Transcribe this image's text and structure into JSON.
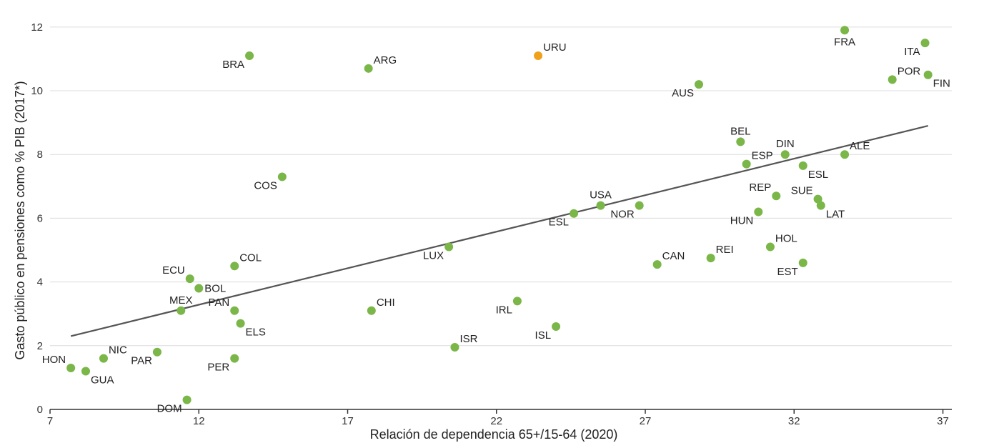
{
  "chart_data": {
    "type": "scatter",
    "xlabel": "Relación de dependencia 65+/15-64 (2020)",
    "ylabel": "Gasto público en pensiones como % PIB (2017*)",
    "xlim": [
      7,
      37.3
    ],
    "ylim": [
      0,
      12.4
    ],
    "x_ticks": [
      7,
      12,
      17,
      22,
      27,
      32,
      37
    ],
    "y_ticks": [
      0,
      2,
      4,
      6,
      8,
      10,
      12
    ],
    "grid": true,
    "colors": {
      "default": "#7ab648",
      "highlight": "#f0a11c"
    },
    "points": [
      {
        "label": "HON",
        "x": 7.7,
        "y": 1.3,
        "pos": "tl"
      },
      {
        "label": "GUA",
        "x": 8.2,
        "y": 1.2,
        "pos": "br"
      },
      {
        "label": "NIC",
        "x": 8.8,
        "y": 1.6,
        "pos": "tr"
      },
      {
        "label": "PAR",
        "x": 10.6,
        "y": 1.8,
        "pos": "bl"
      },
      {
        "label": "DOM",
        "x": 11.6,
        "y": 0.3,
        "pos": "bl"
      },
      {
        "label": "MEX",
        "x": 11.4,
        "y": 3.1,
        "pos": "t"
      },
      {
        "label": "ECU",
        "x": 11.7,
        "y": 4.1,
        "pos": "tl"
      },
      {
        "label": "BOL",
        "x": 12.0,
        "y": 3.8,
        "pos": "r"
      },
      {
        "label": "PAN",
        "x": 13.2,
        "y": 3.1,
        "pos": "tl"
      },
      {
        "label": "ELS",
        "x": 13.4,
        "y": 2.7,
        "pos": "br"
      },
      {
        "label": "PER",
        "x": 13.2,
        "y": 1.6,
        "pos": "bl"
      },
      {
        "label": "COL",
        "x": 13.2,
        "y": 4.5,
        "pos": "tr"
      },
      {
        "label": "BRA",
        "x": 13.7,
        "y": 11.1,
        "pos": "bl"
      },
      {
        "label": "COS",
        "x": 14.8,
        "y": 7.3,
        "pos": "bl"
      },
      {
        "label": "ARG",
        "x": 17.7,
        "y": 10.7,
        "pos": "tr"
      },
      {
        "label": "CHI",
        "x": 17.8,
        "y": 3.1,
        "pos": "tr"
      },
      {
        "label": "LUX",
        "x": 20.4,
        "y": 5.1,
        "pos": "bl"
      },
      {
        "label": "ISR",
        "x": 20.6,
        "y": 1.95,
        "pos": "tr"
      },
      {
        "label": "IRL",
        "x": 22.7,
        "y": 3.4,
        "pos": "bl"
      },
      {
        "label": "URU",
        "x": 23.4,
        "y": 11.1,
        "pos": "tr",
        "highlight": true
      },
      {
        "label": "ISL",
        "x": 24.0,
        "y": 2.6,
        "pos": "bl"
      },
      {
        "label": "ESL",
        "x": 24.6,
        "y": 6.15,
        "pos": "bl"
      },
      {
        "label": "USA",
        "x": 25.5,
        "y": 6.4,
        "pos": "t"
      },
      {
        "label": "NOR",
        "x": 26.8,
        "y": 6.4,
        "pos": "bl"
      },
      {
        "label": "CAN",
        "x": 27.4,
        "y": 4.55,
        "pos": "tr"
      },
      {
        "label": "AUS",
        "x": 28.8,
        "y": 10.2,
        "pos": "bl"
      },
      {
        "label": "REI",
        "x": 29.2,
        "y": 4.75,
        "pos": "tr"
      },
      {
        "label": "BEL",
        "x": 30.2,
        "y": 8.4,
        "pos": "t"
      },
      {
        "label": "ESP",
        "x": 30.4,
        "y": 7.7,
        "pos": "tr"
      },
      {
        "label": "HUN",
        "x": 30.8,
        "y": 6.2,
        "pos": "bl"
      },
      {
        "label": "REP",
        "x": 31.4,
        "y": 6.7,
        "pos": "tl"
      },
      {
        "label": "HOL",
        "x": 31.2,
        "y": 5.1,
        "pos": "tr"
      },
      {
        "label": "DIN",
        "x": 31.7,
        "y": 8.0,
        "pos": "t"
      },
      {
        "label": "ESL",
        "x": 32.3,
        "y": 7.65,
        "pos": "br"
      },
      {
        "label": "EST",
        "x": 32.3,
        "y": 4.6,
        "pos": "bl"
      },
      {
        "label": "SUE",
        "x": 32.8,
        "y": 6.6,
        "pos": "tl"
      },
      {
        "label": "LAT",
        "x": 32.9,
        "y": 6.4,
        "pos": "br"
      },
      {
        "label": "FRA",
        "x": 33.7,
        "y": 11.9,
        "pos": "b"
      },
      {
        "label": "ALE",
        "x": 33.7,
        "y": 8.0,
        "pos": "tr"
      },
      {
        "label": "POR",
        "x": 35.3,
        "y": 10.35,
        "pos": "tr"
      },
      {
        "label": "ITA",
        "x": 36.4,
        "y": 11.5,
        "pos": "bl"
      },
      {
        "label": "FIN",
        "x": 36.5,
        "y": 10.5,
        "pos": "br"
      }
    ],
    "trendline": {
      "x": [
        7.7,
        36.5
      ],
      "y": [
        2.3,
        8.9
      ]
    }
  }
}
